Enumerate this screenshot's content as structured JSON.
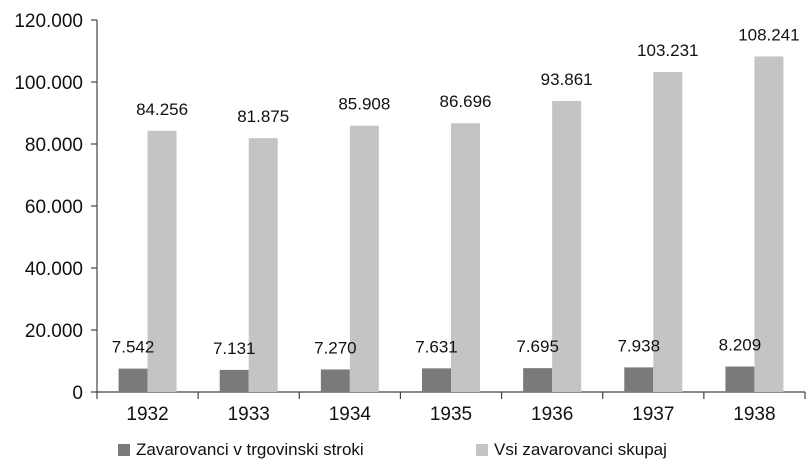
{
  "chart_data": {
    "type": "bar",
    "title": "",
    "xlabel": "",
    "ylabel": "",
    "categories": [
      "1932",
      "1933",
      "1934",
      "1935",
      "1936",
      "1937",
      "1938"
    ],
    "series": [
      {
        "name": "Zavarovanci v trgovinski stroki",
        "color": "#7a7a7a",
        "values": [
          7542,
          7131,
          7270,
          7631,
          7695,
          7938,
          8209
        ],
        "labels": [
          "7.542",
          "7.131",
          "7.270",
          "7.631",
          "7.695",
          "7.938",
          "8.209"
        ]
      },
      {
        "name": "Vsi zavarovanci skupaj",
        "color": "#c4c4c4",
        "values": [
          84256,
          81875,
          85908,
          86696,
          93861,
          103231,
          108241
        ],
        "labels": [
          "84.256",
          "81.875",
          "85.908",
          "86.696",
          "93.861",
          "103.231",
          "108.241"
        ]
      }
    ],
    "ylim": [
      0,
      120000
    ],
    "yticks": [
      0,
      20000,
      40000,
      60000,
      80000,
      100000,
      120000
    ],
    "ytick_labels": [
      "0",
      "20.000",
      "40.000",
      "60.000",
      "80.000",
      "100.000",
      "120.000"
    ],
    "grid": false,
    "legend_position": "bottom"
  }
}
